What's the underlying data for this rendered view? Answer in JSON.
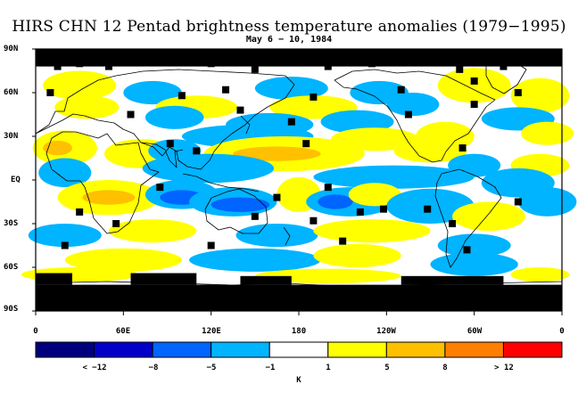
{
  "title": "HIRS CHN 12 Pentad brightness temperature anomalies (1979−1995)",
  "subtitle": "May 6 − 10, 1984",
  "chart_data": {
    "type": "heatmap",
    "title": "HIRS CHN 12 Pentad brightness temperature anomalies (1979−1995)",
    "subtitle": "May 6 − 10, 1984",
    "projection": "equirectangular world map, 0 to 360 longitude, 90S to 90N",
    "y_ticks": [
      "90N",
      "60N",
      "30N",
      "EQ",
      "30S",
      "60S",
      "90S"
    ],
    "x_ticks": [
      "0",
      "60E",
      "120E",
      "180",
      "120W",
      "60W",
      "0"
    ],
    "colorbar": {
      "units": "K",
      "tick_labels": [
        "< −12",
        "−8",
        "−5",
        "−1",
        "1",
        "5",
        "8",
        "> 12"
      ],
      "bins": [
        {
          "range": "< -12",
          "color": "#00007f"
        },
        {
          "range": "-12 to -8",
          "color": "#0000c8"
        },
        {
          "range": "-8 to -5",
          "color": "#0064ff"
        },
        {
          "range": "-5 to -1",
          "color": "#00b4ff"
        },
        {
          "range": "-1 to 1",
          "color": "#ffffff"
        },
        {
          "range": "1 to 5",
          "color": "#ffff00"
        },
        {
          "range": "5 to 8",
          "color": "#ffc000"
        },
        {
          "range": "8 to 12",
          "color": "#ff8000"
        },
        {
          "range": "> 12",
          "color": "#ff0000"
        }
      ]
    },
    "missing_data_color": "#000000",
    "anomaly_regions": [
      {
        "lon": 30,
        "lat": 65,
        "w": 25,
        "h": 10,
        "bin": 5
      },
      {
        "lon": 80,
        "lat": 60,
        "w": 20,
        "h": 8,
        "bin": 3
      },
      {
        "lon": 175,
        "lat": 63,
        "w": 25,
        "h": 8,
        "bin": 3
      },
      {
        "lon": 235,
        "lat": 60,
        "w": 20,
        "h": 8,
        "bin": 3
      },
      {
        "lon": 300,
        "lat": 65,
        "w": 25,
        "h": 12,
        "bin": 5
      },
      {
        "lon": 345,
        "lat": 58,
        "w": 20,
        "h": 12,
        "bin": 5
      },
      {
        "lon": 35,
        "lat": 50,
        "w": 22,
        "h": 8,
        "bin": 5
      },
      {
        "lon": 110,
        "lat": 50,
        "w": 28,
        "h": 8,
        "bin": 5
      },
      {
        "lon": 190,
        "lat": 50,
        "w": 30,
        "h": 8,
        "bin": 5
      },
      {
        "lon": 258,
        "lat": 52,
        "w": 18,
        "h": 8,
        "bin": 3
      },
      {
        "lon": 95,
        "lat": 43,
        "w": 20,
        "h": 8,
        "bin": 3
      },
      {
        "lon": 160,
        "lat": 38,
        "w": 30,
        "h": 8,
        "bin": 3
      },
      {
        "lon": 220,
        "lat": 40,
        "w": 25,
        "h": 8,
        "bin": 3
      },
      {
        "lon": 330,
        "lat": 42,
        "w": 25,
        "h": 8,
        "bin": 3
      },
      {
        "lon": 145,
        "lat": 30,
        "w": 45,
        "h": 8,
        "bin": 3
      },
      {
        "lon": 232,
        "lat": 28,
        "w": 30,
        "h": 8,
        "bin": 5
      },
      {
        "lon": 280,
        "lat": 30,
        "w": 20,
        "h": 10,
        "bin": 5
      },
      {
        "lon": 350,
        "lat": 32,
        "w": 18,
        "h": 8,
        "bin": 5
      },
      {
        "lon": 20,
        "lat": 22,
        "w": 22,
        "h": 12,
        "bin": 5
      },
      {
        "lon": 15,
        "lat": 22,
        "w": 10,
        "h": 5,
        "bin": 6
      },
      {
        "lon": 72,
        "lat": 18,
        "w": 25,
        "h": 10,
        "bin": 5
      },
      {
        "lon": 95,
        "lat": 20,
        "w": 18,
        "h": 8,
        "bin": 3
      },
      {
        "lon": 170,
        "lat": 18,
        "w": 55,
        "h": 12,
        "bin": 5
      },
      {
        "lon": 165,
        "lat": 18,
        "w": 30,
        "h": 5,
        "bin": 6
      },
      {
        "lon": 270,
        "lat": 20,
        "w": 25,
        "h": 8,
        "bin": 5
      },
      {
        "lon": 300,
        "lat": 10,
        "w": 18,
        "h": 8,
        "bin": 3
      },
      {
        "lon": 345,
        "lat": 10,
        "w": 20,
        "h": 8,
        "bin": 5
      },
      {
        "lon": 20,
        "lat": 5,
        "w": 18,
        "h": 10,
        "bin": 3
      },
      {
        "lon": 118,
        "lat": 8,
        "w": 45,
        "h": 10,
        "bin": 3
      },
      {
        "lon": 245,
        "lat": 2,
        "w": 55,
        "h": 8,
        "bin": 3
      },
      {
        "lon": 330,
        "lat": -2,
        "w": 25,
        "h": 10,
        "bin": 3
      },
      {
        "lon": 50,
        "lat": -12,
        "w": 35,
        "h": 12,
        "bin": 5
      },
      {
        "lon": 50,
        "lat": -12,
        "w": 18,
        "h": 5,
        "bin": 6
      },
      {
        "lon": 100,
        "lat": -10,
        "w": 25,
        "h": 10,
        "bin": 3
      },
      {
        "lon": 100,
        "lat": -12,
        "w": 15,
        "h": 5,
        "bin": 2
      },
      {
        "lon": 135,
        "lat": -15,
        "w": 30,
        "h": 10,
        "bin": 3
      },
      {
        "lon": 140,
        "lat": -17,
        "w": 20,
        "h": 5,
        "bin": 2
      },
      {
        "lon": 180,
        "lat": -10,
        "w": 15,
        "h": 12,
        "bin": 5
      },
      {
        "lon": 215,
        "lat": -15,
        "w": 30,
        "h": 10,
        "bin": 3
      },
      {
        "lon": 205,
        "lat": -15,
        "w": 12,
        "h": 5,
        "bin": 2
      },
      {
        "lon": 232,
        "lat": -10,
        "w": 18,
        "h": 8,
        "bin": 5
      },
      {
        "lon": 270,
        "lat": -18,
        "w": 30,
        "h": 12,
        "bin": 3
      },
      {
        "lon": 310,
        "lat": -25,
        "w": 25,
        "h": 10,
        "bin": 5
      },
      {
        "lon": 350,
        "lat": -15,
        "w": 20,
        "h": 10,
        "bin": 3
      },
      {
        "lon": 20,
        "lat": -38,
        "w": 25,
        "h": 8,
        "bin": 3
      },
      {
        "lon": 80,
        "lat": -35,
        "w": 30,
        "h": 8,
        "bin": 5
      },
      {
        "lon": 165,
        "lat": -38,
        "w": 28,
        "h": 8,
        "bin": 3
      },
      {
        "lon": 230,
        "lat": -35,
        "w": 40,
        "h": 8,
        "bin": 5
      },
      {
        "lon": 300,
        "lat": -45,
        "w": 25,
        "h": 8,
        "bin": 3
      },
      {
        "lon": 60,
        "lat": -55,
        "w": 40,
        "h": 8,
        "bin": 5
      },
      {
        "lon": 150,
        "lat": -55,
        "w": 45,
        "h": 8,
        "bin": 3
      },
      {
        "lon": 220,
        "lat": -52,
        "w": 30,
        "h": 8,
        "bin": 5
      },
      {
        "lon": 300,
        "lat": -58,
        "w": 30,
        "h": 8,
        "bin": 3
      },
      {
        "lon": 30,
        "lat": -65,
        "w": 40,
        "h": 5,
        "bin": 5
      },
      {
        "lon": 200,
        "lat": -66,
        "w": 50,
        "h": 5,
        "bin": 5
      },
      {
        "lon": 345,
        "lat": -65,
        "w": 20,
        "h": 5,
        "bin": 5
      }
    ],
    "missing_cells": [
      [
        15,
        78
      ],
      [
        30,
        80
      ],
      [
        50,
        78
      ],
      [
        120,
        80
      ],
      [
        150,
        76
      ],
      [
        200,
        78
      ],
      [
        230,
        80
      ],
      [
        290,
        76
      ],
      [
        320,
        78
      ],
      [
        10,
        60
      ],
      [
        100,
        58
      ],
      [
        130,
        62
      ],
      [
        190,
        57
      ],
      [
        250,
        62
      ],
      [
        330,
        60
      ],
      [
        300,
        68
      ],
      [
        65,
        45
      ],
      [
        140,
        48
      ],
      [
        175,
        40
      ],
      [
        255,
        45
      ],
      [
        300,
        52
      ],
      [
        92,
        25
      ],
      [
        110,
        20
      ],
      [
        185,
        25
      ],
      [
        292,
        22
      ],
      [
        85,
        -5
      ],
      [
        165,
        -12
      ],
      [
        200,
        -5
      ],
      [
        238,
        -20
      ],
      [
        268,
        -20
      ],
      [
        330,
        -15
      ],
      [
        30,
        -22
      ],
      [
        55,
        -30
      ],
      [
        150,
        -25
      ],
      [
        190,
        -28
      ],
      [
        222,
        -22
      ],
      [
        285,
        -30
      ],
      [
        20,
        -45
      ],
      [
        120,
        -45
      ],
      [
        210,
        -42
      ],
      [
        295,
        -48
      ]
    ],
    "missing_strips": [
      {
        "lon0": 0,
        "lon1": 360,
        "lat0": 78,
        "lat1": 90
      },
      {
        "lon0": 0,
        "lon1": 360,
        "lat0": -90,
        "lat1": -72
      },
      {
        "lon0": 0,
        "lon1": 25,
        "lat0": -72,
        "lat1": -64
      },
      {
        "lon0": 65,
        "lon1": 110,
        "lat0": -72,
        "lat1": -64
      },
      {
        "lon0": 140,
        "lon1": 175,
        "lat0": -72,
        "lat1": -66
      },
      {
        "lon0": 250,
        "lon1": 320,
        "lat0": -72,
        "lat1": -66
      }
    ]
  }
}
